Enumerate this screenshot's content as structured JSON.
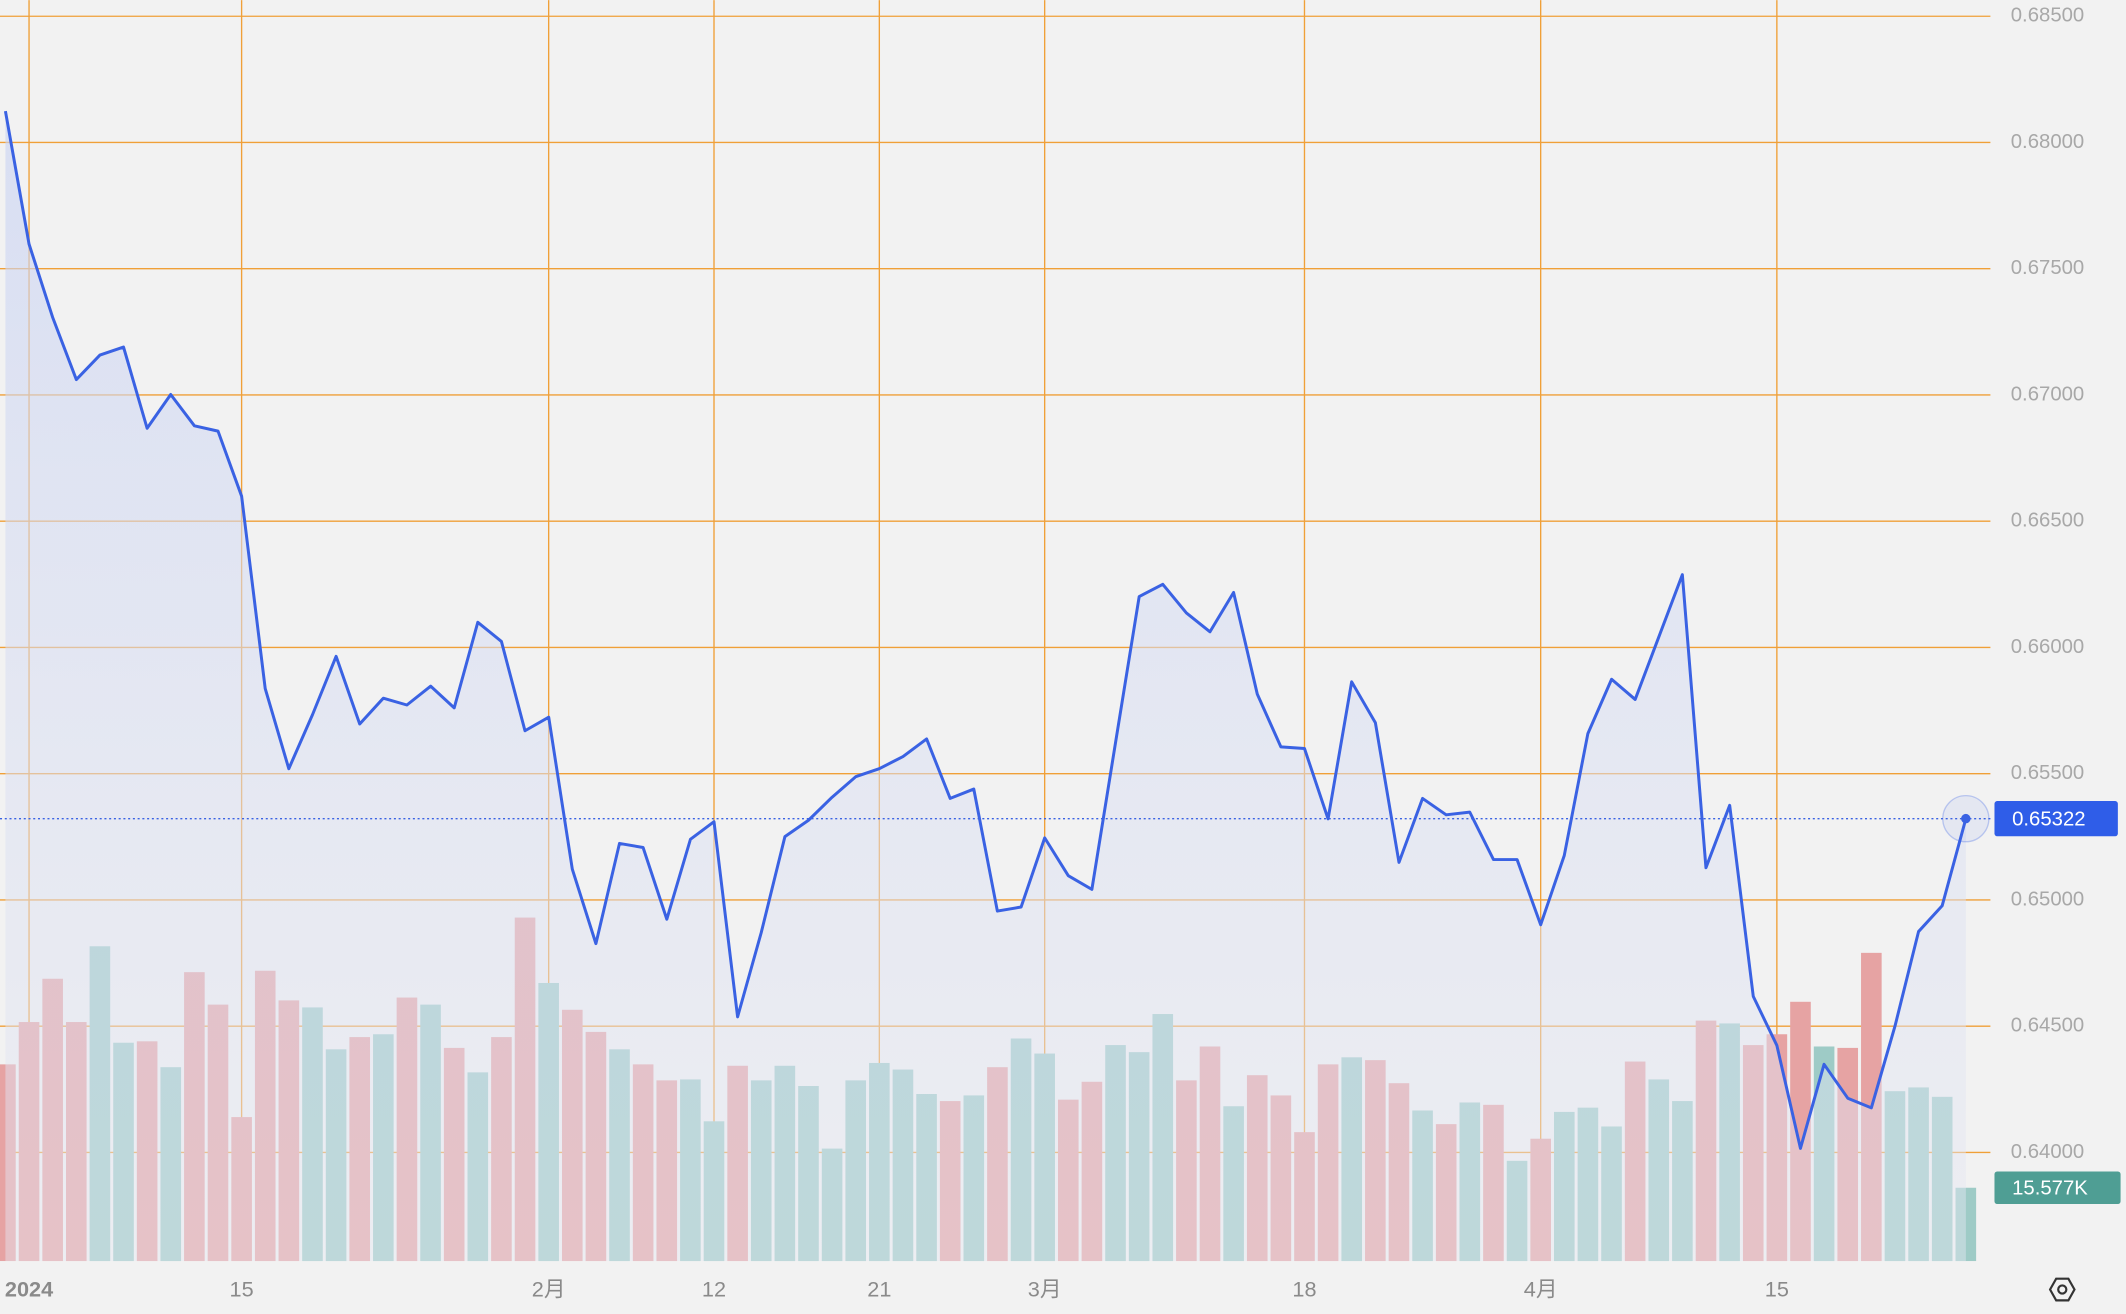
{
  "chart_data": {
    "type": "line",
    "categories": [
      null,
      "2024",
      null,
      null,
      null,
      null,
      null,
      null,
      null,
      null,
      "15",
      null,
      null,
      null,
      null,
      null,
      null,
      null,
      null,
      null,
      null,
      null,
      null,
      "2月",
      null,
      null,
      null,
      null,
      null,
      null,
      "12",
      null,
      null,
      null,
      null,
      null,
      null,
      "21",
      null,
      null,
      null,
      null,
      null,
      null,
      "3月",
      null,
      null,
      null,
      null,
      null,
      null,
      null,
      null,
      null,
      null,
      "18",
      null,
      null,
      null,
      null,
      null,
      null,
      null,
      null,
      null,
      "4月",
      null,
      null,
      null,
      null,
      null,
      null,
      null,
      null,
      null,
      "15",
      null,
      null,
      null,
      null,
      null,
      null,
      null,
      null
    ],
    "series": [
      {
        "type": "line",
        "color": "#3a62e3",
        "values": [
          0.68124,
          0.67598,
          0.67308,
          0.67061,
          0.67158,
          0.6719,
          0.66868,
          0.67002,
          0.66878,
          0.66857,
          0.66599,
          0.65837,
          0.6552,
          0.65734,
          0.65965,
          0.65697,
          0.65799,
          0.65772,
          0.65847,
          0.65761,
          0.661,
          0.66024,
          0.6567,
          0.65724,
          0.65122,
          0.64827,
          0.65224,
          0.65208,
          0.64924,
          0.6524,
          0.6531,
          0.64537,
          0.6487,
          0.65251,
          0.65316,
          0.65407,
          0.65488,
          0.6552,
          0.65568,
          0.65638,
          0.65402,
          0.65439,
          0.64956,
          0.64972,
          0.65246,
          0.65096,
          0.65042,
          0.65622,
          0.66202,
          0.6625,
          0.66137,
          0.66062,
          0.66218,
          0.65815,
          0.65606,
          0.656,
          0.65321,
          0.65864,
          0.65702,
          0.65149,
          0.65402,
          0.65337,
          0.65348,
          0.6516,
          0.6516,
          0.64902,
          0.65176,
          0.65659,
          0.65874,
          0.65794,
          0.66041,
          0.66288,
          0.65128,
          0.65375,
          0.64618,
          0.64424,
          0.64016,
          0.64349,
          0.64215,
          0.64177,
          0.645,
          0.64875,
          0.64977,
          0.65322
        ]
      },
      {
        "type": "bar",
        "axis": "y2",
        "colors": [
          "#e6a3a3",
          "#e6a3a3",
          "#e6a3a3",
          "#e6a3a3",
          "#9ecbc6",
          "#9ecbc6",
          "#e6a3a3",
          "#9ecbc6",
          "#e6a3a3",
          "#e6a3a3",
          "#e6a3a3",
          "#e6a3a3",
          "#e6a3a3",
          "#9ecbc6",
          "#9ecbc6",
          "#e6a3a3",
          "#9ecbc6",
          "#e6a3a3",
          "#9ecbc6",
          "#e6a3a3",
          "#9ecbc6",
          "#e6a3a3",
          "#e6a3a3",
          "#9ecbc6",
          "#e6a3a3",
          "#e6a3a3",
          "#9ecbc6",
          "#e6a3a3",
          "#e6a3a3",
          "#9ecbc6",
          "#9ecbc6",
          "#e6a3a3",
          "#9ecbc6",
          "#9ecbc6",
          "#9ecbc6",
          "#9ecbc6",
          "#9ecbc6",
          "#9ecbc6",
          "#9ecbc6",
          "#9ecbc6",
          "#e6a3a3",
          "#9ecbc6",
          "#e6a3a3",
          "#9ecbc6",
          "#9ecbc6",
          "#e6a3a3",
          "#e6a3a3",
          "#9ecbc6",
          "#9ecbc6",
          "#9ecbc6",
          "#e6a3a3",
          "#e6a3a3",
          "#9ecbc6",
          "#e6a3a3",
          "#e6a3a3",
          "#e6a3a3",
          "#e6a3a3",
          "#9ecbc6",
          "#e6a3a3",
          "#e6a3a3",
          "#9ecbc6",
          "#e6a3a3",
          "#9ecbc6",
          "#e6a3a3",
          "#9ecbc6",
          "#e6a3a3",
          "#9ecbc6",
          "#9ecbc6",
          "#9ecbc6",
          "#e6a3a3",
          "#9ecbc6",
          "#9ecbc6",
          "#e6a3a3",
          "#9ecbc6",
          "#e6a3a3",
          "#e6a3a3",
          "#e6a3a3",
          "#9ecbc6",
          "#e6a3a3",
          "#e6a3a3",
          "#9ecbc6",
          "#9ecbc6",
          "#9ecbc6",
          "#9ecbc6"
        ],
        "values": [
          41.8,
          50.8,
          60.0,
          50.8,
          66.9,
          46.4,
          46.7,
          41.2,
          61.4,
          54.5,
          30.6,
          61.7,
          55.4,
          53.9,
          45.0,
          47.6,
          48.2,
          56.0,
          54.5,
          45.3,
          40.1,
          47.6,
          73.0,
          59.1,
          53.4,
          48.7,
          45.0,
          41.8,
          38.4,
          38.6,
          29.7,
          41.5,
          38.4,
          41.5,
          37.2,
          23.9,
          38.4,
          42.1,
          40.7,
          35.5,
          34.0,
          35.2,
          41.2,
          47.3,
          44.1,
          34.3,
          38.1,
          45.9,
          44.4,
          52.5,
          38.4,
          45.6,
          32.9,
          39.5,
          35.2,
          27.4,
          41.8,
          43.3,
          42.7,
          37.8,
          32.0,
          29.1,
          33.7,
          33.2,
          21.3,
          26.0,
          31.7,
          32.6,
          28.6,
          42.4,
          38.6,
          34.0,
          51.1,
          50.5,
          45.9,
          48.2,
          55.1,
          45.6,
          45.3,
          65.5,
          36.1,
          36.9,
          34.9,
          15.577
        ],
        "value_labels": [
          null,
          null,
          null,
          null,
          null,
          null,
          null,
          null,
          null,
          null,
          null,
          null,
          null,
          null,
          null,
          null,
          null,
          null,
          null,
          null,
          null,
          null,
          null,
          null,
          null,
          null,
          null,
          null,
          null,
          null,
          null,
          null,
          null,
          null,
          null,
          null,
          null,
          null,
          null,
          null,
          null,
          null,
          null,
          null,
          null,
          null,
          null,
          null,
          null,
          null,
          null,
          null,
          null,
          null,
          null,
          null,
          null,
          null,
          null,
          null,
          null,
          null,
          null,
          null,
          null,
          null,
          null,
          null,
          null,
          null,
          null,
          null,
          null,
          null,
          null,
          null,
          null,
          null,
          null,
          null,
          null,
          null,
          null,
          "15.577K"
        ]
      }
    ],
    "ylim": [
      0.6357,
      0.68564
    ],
    "yticks": [
      {
        "value": 0.64,
        "label": "0.64000"
      },
      {
        "value": 0.645,
        "label": "0.64500"
      },
      {
        "value": 0.65,
        "label": "0.65000"
      },
      {
        "value": 0.655,
        "label": "0.65500"
      },
      {
        "value": 0.66,
        "label": "0.66000"
      },
      {
        "value": 0.665,
        "label": "0.66500"
      },
      {
        "value": 0.67,
        "label": "0.67000"
      },
      {
        "value": 0.675,
        "label": "0.67500"
      },
      {
        "value": 0.68,
        "label": "0.68000"
      },
      {
        "value": 0.685,
        "label": "0.68500"
      }
    ],
    "y2lim": [
      0,
      268
    ],
    "grid": true
  }
}
